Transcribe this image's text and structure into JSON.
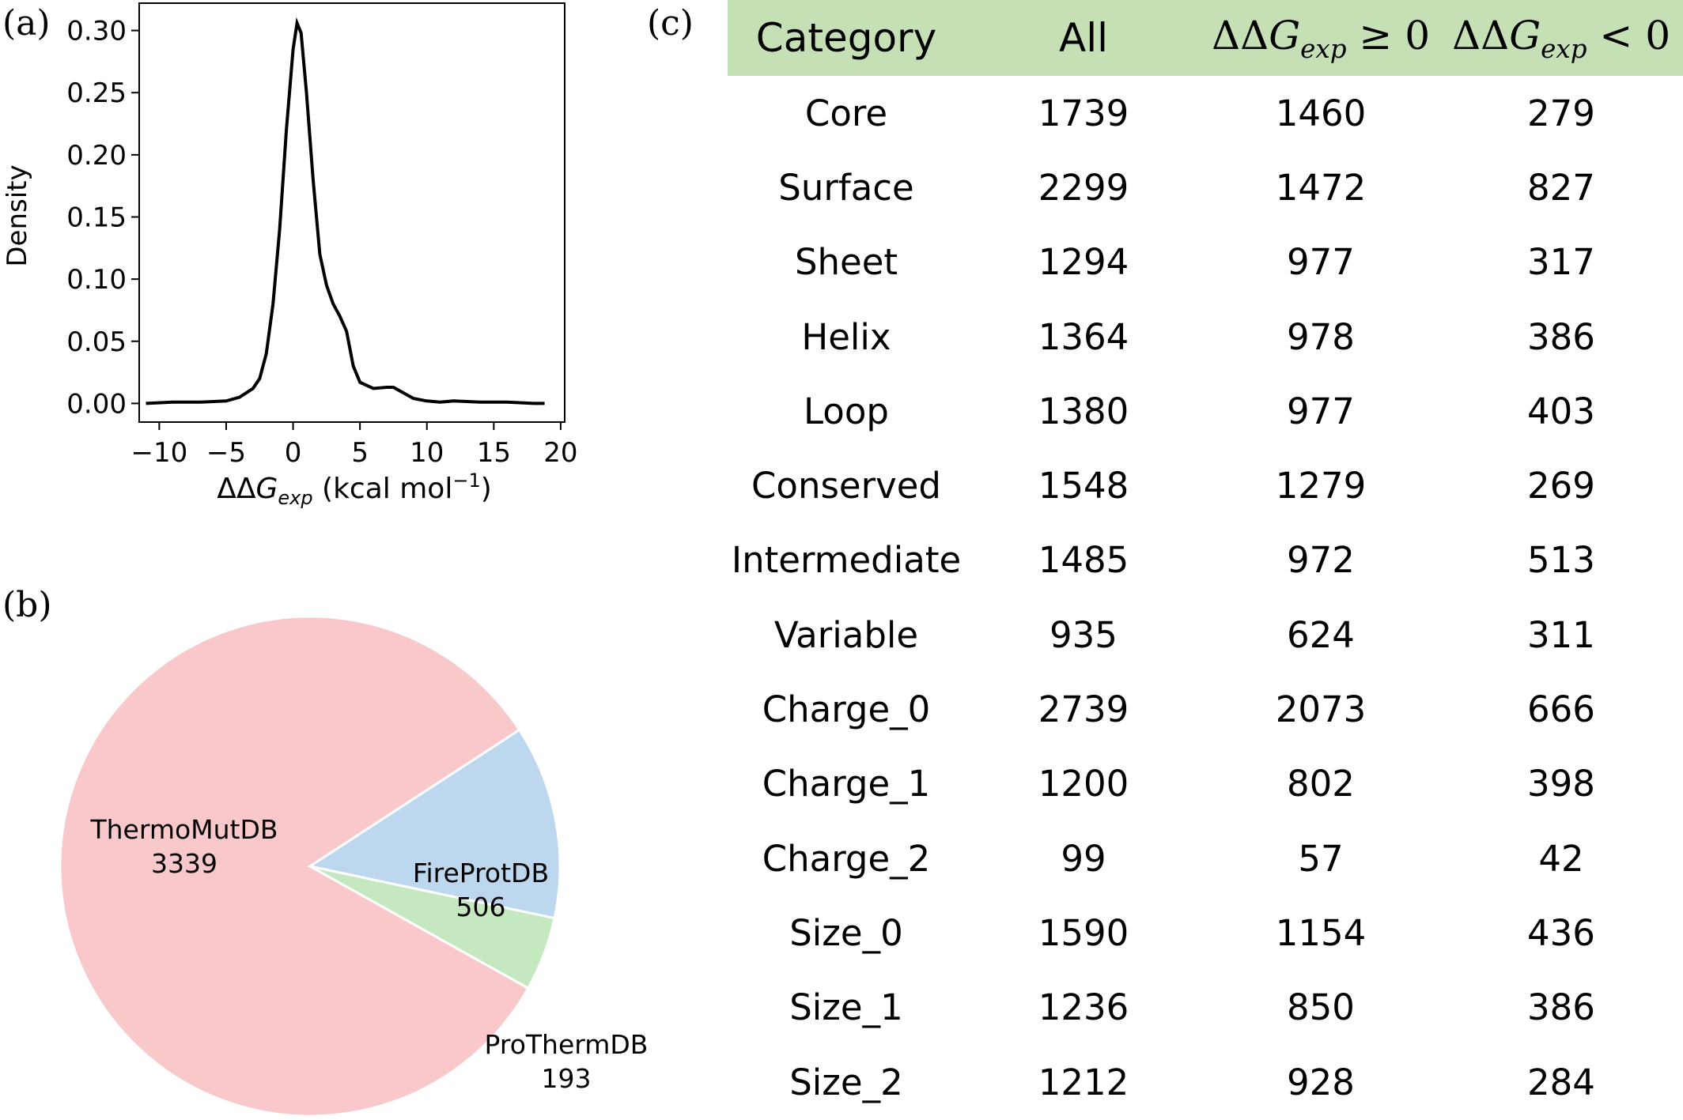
{
  "panel_labels": {
    "a": "(a)",
    "b": "(b)",
    "c": "(c)"
  },
  "chart_data": [
    {
      "type": "line",
      "panel": "(a)",
      "xlabel": "ΔΔGexp (kcal mol−1)",
      "ylabel": "Density",
      "xlim": [
        -11.5,
        20.3
      ],
      "ylim": [
        -0.015,
        0.322
      ],
      "xticks": [
        -10,
        -5,
        0,
        5,
        10,
        15,
        20
      ],
      "xtick_labels": [
        "−10",
        "−5",
        "0",
        "5",
        "10",
        "15",
        "20"
      ],
      "yticks": [
        0.0,
        0.05,
        0.1,
        0.15,
        0.2,
        0.25,
        0.3
      ],
      "ytick_labels": [
        "0.00",
        "0.05",
        "0.10",
        "0.15",
        "0.20",
        "0.25",
        "0.30"
      ],
      "grid": false,
      "color": "#000000",
      "series": [
        {
          "x": [
            -11,
            -9,
            -7,
            -5,
            -4,
            -3,
            -2.5,
            -2,
            -1.5,
            -1,
            -0.5,
            0,
            0.3,
            0.6,
            1,
            1.5,
            2,
            2.5,
            3,
            3.5,
            4,
            4.5,
            5,
            6,
            7,
            7.5,
            8,
            9,
            10,
            11,
            12,
            14,
            16,
            18,
            18.8
          ],
          "y": [
            0.0,
            0.001,
            0.001,
            0.002,
            0.005,
            0.012,
            0.02,
            0.04,
            0.08,
            0.14,
            0.22,
            0.285,
            0.306,
            0.298,
            0.25,
            0.18,
            0.12,
            0.095,
            0.08,
            0.07,
            0.058,
            0.03,
            0.017,
            0.012,
            0.013,
            0.013,
            0.01,
            0.004,
            0.002,
            0.001,
            0.002,
            0.001,
            0.001,
            0.0,
            0.0
          ]
        }
      ]
    },
    {
      "type": "pie",
      "panel": "(b)",
      "categories": [
        "ThermoMutDB",
        "FireProtDB",
        "ProThermDB"
      ],
      "values": [
        3339,
        506,
        193
      ],
      "colors": [
        "#f8c8cb",
        "#bdd7ee",
        "#c5e8c1"
      ],
      "labels": [
        {
          "name": "ThermoMutDB",
          "value": "3339"
        },
        {
          "name": "FireProtDB",
          "value": "506"
        },
        {
          "name": "ProThermDB",
          "value": "193"
        }
      ]
    },
    {
      "type": "table",
      "panel": "(c)",
      "header_bg": "#c5e0b4",
      "columns": [
        "Category",
        "All",
        "ΔΔGexp ≥ 0",
        "ΔΔGexp < 0"
      ],
      "rows": [
        [
          "Core",
          "1739",
          "1460",
          "279"
        ],
        [
          "Surface",
          "2299",
          "1472",
          "827"
        ],
        [
          "Sheet",
          "1294",
          "977",
          "317"
        ],
        [
          "Helix",
          "1364",
          "978",
          "386"
        ],
        [
          "Loop",
          "1380",
          "977",
          "403"
        ],
        [
          "Conserved",
          "1548",
          "1279",
          "269"
        ],
        [
          "Intermediate",
          "1485",
          "972",
          "513"
        ],
        [
          "Variable",
          "935",
          "624",
          "311"
        ],
        [
          "Charge_0",
          "2739",
          "2073",
          "666"
        ],
        [
          "Charge_1",
          "1200",
          "802",
          "398"
        ],
        [
          "Charge_2",
          "99",
          "57",
          "42"
        ],
        [
          "Size_0",
          "1590",
          "1154",
          "436"
        ],
        [
          "Size_1",
          "1236",
          "850",
          "386"
        ],
        [
          "Size_2",
          "1212",
          "928",
          "284"
        ]
      ]
    }
  ]
}
